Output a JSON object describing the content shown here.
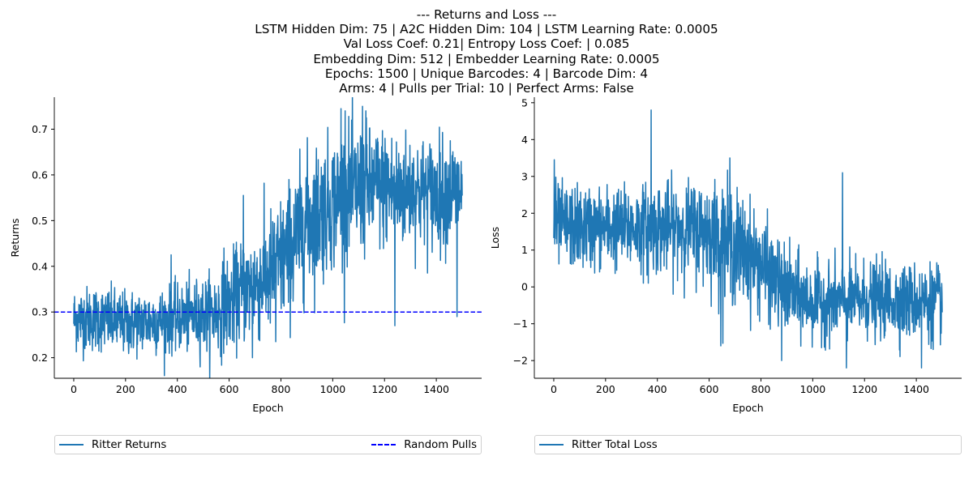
{
  "title_lines": [
    "--- Returns and Loss ---",
    "LSTM Hidden Dim: 75 | A2C Hidden Dim: 104 | LSTM Learning Rate: 0.0005",
    "Val Loss Coef: 0.21| Entropy Loss Coef: | 0.085",
    "Embedding Dim: 512 | Embedder Learning Rate: 0.0005",
    "Epochs: 1500 | Unique Barcodes: 4 | Barcode Dim: 4",
    "Arms: 4 | Pulls per Trial: 10 | Perfect Arms: False"
  ],
  "colors": {
    "series": "#1f77b4",
    "random": "#0000ff",
    "axis": "#000000",
    "legend_border": "#d0d0d0"
  },
  "chart_data": [
    {
      "type": "line",
      "id": "returns",
      "xlabel": "Epoch",
      "ylabel": "Returns",
      "xlim": [
        -75,
        1575
      ],
      "ylim": [
        0.155,
        0.77
      ],
      "xticks": [
        0,
        200,
        400,
        600,
        800,
        1000,
        1200,
        1400
      ],
      "yticks": [
        0.2,
        0.3,
        0.4,
        0.5,
        0.6,
        0.7
      ],
      "ytick_decimals": 1,
      "legend_position": "below, full width",
      "series": [
        {
          "name": "Ritter Returns",
          "style": "solid",
          "x": [
            0,
            100,
            200,
            300,
            400,
            500,
            560,
            600,
            650,
            700,
            750,
            800,
            850,
            900,
            950,
            1000,
            1050,
            1100,
            1150,
            1200,
            1250,
            1300,
            1350,
            1400,
            1450,
            1500
          ],
          "y": [
            0.285,
            0.285,
            0.275,
            0.28,
            0.285,
            0.295,
            0.3,
            0.32,
            0.345,
            0.36,
            0.38,
            0.41,
            0.45,
            0.5,
            0.52,
            0.54,
            0.56,
            0.565,
            0.57,
            0.575,
            0.56,
            0.57,
            0.56,
            0.56,
            0.565,
            0.56
          ],
          "noise": [
            0.035,
            0.035,
            0.035,
            0.035,
            0.035,
            0.04,
            0.045,
            0.05,
            0.055,
            0.06,
            0.065,
            0.07,
            0.075,
            0.075,
            0.075,
            0.07,
            0.07,
            0.07,
            0.065,
            0.065,
            0.065,
            0.06,
            0.06,
            0.06,
            0.06,
            0.06
          ],
          "spikes": [
            [
              376,
              0.425
            ],
            [
              580,
              0.44
            ],
            [
              655,
              0.555
            ],
            [
              690,
              0.2
            ],
            [
              780,
              0.235
            ],
            [
              1032,
              0.745
            ],
            [
              1048,
              0.74
            ],
            [
              1115,
              0.75
            ],
            [
              1128,
              0.74
            ],
            [
              1240,
              0.27
            ],
            [
              1480,
              0.29
            ]
          ]
        },
        {
          "name": "Random Pulls",
          "style": "dashed",
          "x": [
            -75,
            1575
          ],
          "y": [
            0.3,
            0.3
          ]
        }
      ]
    },
    {
      "type": "line",
      "id": "loss",
      "xlabel": "Epoch",
      "ylabel": "Loss",
      "xlim": [
        -75,
        1575
      ],
      "ylim": [
        -2.48,
        5.15
      ],
      "xticks": [
        0,
        200,
        400,
        600,
        800,
        1000,
        1200,
        1400
      ],
      "yticks": [
        -2,
        -1,
        0,
        1,
        2,
        3,
        4,
        5
      ],
      "ytick_decimals": 0,
      "legend_position": "below, full width",
      "series": [
        {
          "name": "Ritter Total Loss",
          "style": "solid",
          "x": [
            0,
            100,
            200,
            300,
            400,
            500,
            600,
            650,
            700,
            750,
            800,
            850,
            900,
            950,
            1000,
            1050,
            1100,
            1150,
            1200,
            1250,
            1300,
            1350,
            1400,
            1450,
            1500
          ],
          "y": [
            1.7,
            1.6,
            1.6,
            1.6,
            1.6,
            1.6,
            1.5,
            1.3,
            1.1,
            0.9,
            0.6,
            0.2,
            -0.1,
            -0.3,
            -0.4,
            -0.4,
            -0.4,
            -0.4,
            -0.35,
            -0.35,
            -0.35,
            -0.4,
            -0.4,
            -0.4,
            -0.4
          ],
          "noise": [
            0.55,
            0.55,
            0.55,
            0.55,
            0.6,
            0.6,
            0.7,
            0.75,
            0.75,
            0.7,
            0.65,
            0.6,
            0.55,
            0.55,
            0.5,
            0.5,
            0.5,
            0.5,
            0.5,
            0.5,
            0.5,
            0.5,
            0.5,
            0.5,
            0.5
          ],
          "spikes": [
            [
              2,
              3.45
            ],
            [
              376,
              4.8
            ],
            [
              365,
              0.1
            ],
            [
              645,
              -1.6
            ],
            [
              680,
              3.5
            ],
            [
              880,
              -2.0
            ],
            [
              1115,
              3.1
            ],
            [
              1130,
              -2.2
            ],
            [
              1420,
              -2.2
            ],
            [
              1465,
              -1.7
            ]
          ]
        }
      ]
    }
  ],
  "legends": [
    {
      "items": [
        {
          "label": "Ritter Returns",
          "style": "solid"
        },
        {
          "label": "Random Pulls",
          "style": "dashed"
        }
      ]
    },
    {
      "items": [
        {
          "label": "Ritter Total Loss",
          "style": "solid"
        }
      ]
    }
  ]
}
